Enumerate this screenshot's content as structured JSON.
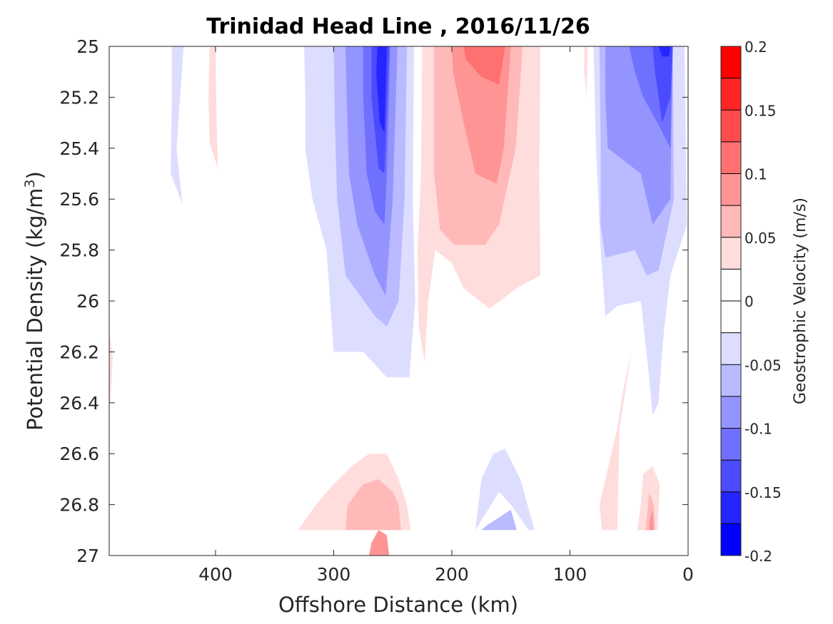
{
  "chart_data": {
    "type": "contour",
    "title": "Trinidad Head Line , 2016/11/26",
    "xlabel": "Offshore Distance (km)",
    "ylabel_prefix": "Potential Density (kg/m",
    "ylabel_superscript": "3",
    "ylabel_suffix": ")",
    "colorbar_label": "Geostrophic Velocity (m/s)",
    "x_axis_reversed": true,
    "y_axis_reversed": true,
    "xlim": [
      490,
      0
    ],
    "ylim": [
      25,
      27
    ],
    "xticks": [
      400,
      300,
      200,
      100,
      0
    ],
    "xtick_labels": [
      "400",
      "300",
      "200",
      "100",
      "0"
    ],
    "yticks": [
      25,
      25.2,
      25.4,
      25.6,
      25.8,
      26,
      26.2,
      26.4,
      26.6,
      26.8,
      27
    ],
    "ytick_labels": [
      "25",
      "25.2",
      "25.4",
      "25.6",
      "25.8",
      "26",
      "26.2",
      "26.4",
      "26.6",
      "26.8",
      "27"
    ],
    "colorbar": {
      "range": [
        -0.2,
        0.2
      ],
      "tick_values": [
        0.2,
        0.15,
        0.1,
        0.05,
        0,
        -0.05,
        -0.1,
        -0.15,
        -0.2
      ],
      "tick_labels": [
        "0.2",
        "0.15",
        "0.1",
        "0.05",
        "0",
        "-0.05",
        "-0.1",
        "-0.15",
        "-0.2"
      ],
      "bands_top_to_bottom": [
        "#ff0000",
        "#ff2525",
        "#ff4b4b",
        "#ff7070",
        "#ff9494",
        "#ffb9b9",
        "#ffdddd",
        "#ffffff",
        "#ffffff",
        "#dddeff",
        "#b9baff",
        "#9494ff",
        "#7070ff",
        "#4b4bff",
        "#2525ff",
        "#0000ff"
      ]
    },
    "contour_regions": [
      {
        "level": -0.025,
        "color": "#dddeff",
        "points": [
          [
            437,
            25.0
          ],
          [
            427,
            25.0
          ],
          [
            433,
            25.4
          ],
          [
            428,
            25.62
          ],
          [
            438,
            25.5
          ],
          [
            437,
            25.2
          ]
        ]
      },
      {
        "level": 0.025,
        "color": "#ffdddd",
        "points": [
          [
            405,
            25.0
          ],
          [
            400,
            25.0
          ],
          [
            399,
            25.3
          ],
          [
            398,
            25.48
          ],
          [
            405,
            25.38
          ],
          [
            406,
            25.2
          ]
        ]
      },
      {
        "level": 0.025,
        "color": "#ffdddd",
        "points": [
          [
            490,
            26.12
          ],
          [
            487,
            26.22
          ],
          [
            489,
            26.4
          ],
          [
            490,
            26.4
          ]
        ]
      },
      {
        "level": 0.025,
        "color": "#ffdddd",
        "points": [
          [
            88,
            25.0
          ],
          [
            85,
            25.0
          ],
          [
            86,
            25.2
          ],
          [
            88,
            25.1
          ]
        ]
      },
      {
        "level": -0.025,
        "color": "#dddeff",
        "points": [
          [
            325,
            25.0
          ],
          [
            232,
            25.0
          ],
          [
            233,
            25.6
          ],
          [
            231,
            26.0
          ],
          [
            236,
            26.3
          ],
          [
            255,
            26.3
          ],
          [
            275,
            26.2
          ],
          [
            300,
            26.2
          ],
          [
            303,
            26.0
          ],
          [
            306,
            25.8
          ],
          [
            318,
            25.6
          ],
          [
            324,
            25.4
          ],
          [
            324,
            25.2
          ]
        ]
      },
      {
        "level": -0.05,
        "color": "#b9baff",
        "points": [
          [
            300,
            25.0
          ],
          [
            238,
            25.0
          ],
          [
            240,
            25.6
          ],
          [
            245,
            26.0
          ],
          [
            255,
            26.1
          ],
          [
            265,
            26.06
          ],
          [
            290,
            25.9
          ],
          [
            297,
            25.6
          ],
          [
            299,
            25.3
          ]
        ]
      },
      {
        "level": -0.075,
        "color": "#9494ff",
        "points": [
          [
            290,
            25.0
          ],
          [
            246,
            25.0
          ],
          [
            250,
            25.6
          ],
          [
            256,
            25.98
          ],
          [
            265,
            25.9
          ],
          [
            280,
            25.7
          ],
          [
            287,
            25.5
          ],
          [
            289,
            25.2
          ]
        ]
      },
      {
        "level": -0.1,
        "color": "#7070ff",
        "points": [
          [
            275,
            25.0
          ],
          [
            252,
            25.0
          ],
          [
            255,
            25.5
          ],
          [
            257,
            25.7
          ],
          [
            265,
            25.65
          ],
          [
            272,
            25.5
          ],
          [
            275,
            25.2
          ]
        ]
      },
      {
        "level": -0.125,
        "color": "#4b4bff",
        "points": [
          [
            268,
            25.0
          ],
          [
            253,
            25.0
          ],
          [
            257,
            25.5
          ],
          [
            262,
            25.48
          ],
          [
            268,
            25.2
          ]
        ]
      },
      {
        "level": -0.15,
        "color": "#2525ff",
        "points": [
          [
            263,
            25.0
          ],
          [
            255,
            25.0
          ],
          [
            257,
            25.34
          ],
          [
            261,
            25.3
          ],
          [
            264,
            25.1
          ]
        ]
      },
      {
        "level": 0.025,
        "color": "#ffdddd",
        "points": [
          [
            225,
            25.0
          ],
          [
            125,
            25.0
          ],
          [
            126,
            25.5
          ],
          [
            125,
            25.9
          ],
          [
            145,
            25.95
          ],
          [
            168,
            26.03
          ],
          [
            190,
            25.95
          ],
          [
            200,
            25.85
          ],
          [
            214,
            25.8
          ],
          [
            220,
            26.0
          ],
          [
            223,
            26.24
          ],
          [
            228,
            26.1
          ],
          [
            229,
            25.8
          ],
          [
            226,
            25.5
          ]
        ]
      },
      {
        "level": 0.05,
        "color": "#ffb9b9",
        "points": [
          [
            215,
            25.0
          ],
          [
            140,
            25.0
          ],
          [
            146,
            25.4
          ],
          [
            160,
            25.7
          ],
          [
            172,
            25.78
          ],
          [
            198,
            25.78
          ],
          [
            210,
            25.72
          ],
          [
            215,
            25.5
          ]
        ]
      },
      {
        "level": 0.075,
        "color": "#ff9494",
        "points": [
          [
            200,
            25.0
          ],
          [
            150,
            25.0
          ],
          [
            156,
            25.4
          ],
          [
            162,
            25.54
          ],
          [
            180,
            25.5
          ],
          [
            190,
            25.3
          ],
          [
            199,
            25.1
          ]
        ]
      },
      {
        "level": 0.1,
        "color": "#ff7070",
        "points": [
          [
            190,
            25.0
          ],
          [
            155,
            25.0
          ],
          [
            160,
            25.15
          ],
          [
            175,
            25.12
          ],
          [
            188,
            25.05
          ]
        ]
      },
      {
        "level": -0.025,
        "color": "#dddeff",
        "points": [
          [
            80,
            25.0
          ],
          [
            3,
            25.0
          ],
          [
            1,
            25.7
          ],
          [
            15,
            25.9
          ],
          [
            20,
            26.1
          ],
          [
            22,
            26.2
          ],
          [
            25,
            26.4
          ],
          [
            30,
            26.45
          ],
          [
            33,
            26.3
          ],
          [
            40,
            26.0
          ],
          [
            60,
            26.02
          ],
          [
            70,
            26.06
          ],
          [
            74,
            25.8
          ],
          [
            78,
            25.4
          ]
        ]
      },
      {
        "level": -0.05,
        "color": "#b9baff",
        "points": [
          [
            75,
            25.0
          ],
          [
            13,
            25.0
          ],
          [
            12,
            25.6
          ],
          [
            25,
            25.88
          ],
          [
            35,
            25.9
          ],
          [
            45,
            25.8
          ],
          [
            70,
            25.83
          ],
          [
            74,
            25.7
          ],
          [
            74,
            25.4
          ]
        ]
      },
      {
        "level": -0.075,
        "color": "#9494ff",
        "points": [
          [
            70,
            25.0
          ],
          [
            13,
            25.0
          ],
          [
            15,
            25.6
          ],
          [
            30,
            25.7
          ],
          [
            40,
            25.5
          ],
          [
            68,
            25.4
          ],
          [
            70,
            25.2
          ]
        ]
      },
      {
        "level": -0.1,
        "color": "#7070ff",
        "points": [
          [
            50,
            25.0
          ],
          [
            13,
            25.0
          ],
          [
            15,
            25.4
          ],
          [
            26,
            25.3
          ],
          [
            38,
            25.2
          ],
          [
            45,
            25.1
          ]
        ]
      },
      {
        "level": -0.125,
        "color": "#4b4bff",
        "points": [
          [
            30,
            25.0
          ],
          [
            13,
            25.0
          ],
          [
            15,
            25.2
          ],
          [
            22,
            25.3
          ],
          [
            28,
            25.1
          ]
        ]
      },
      {
        "level": -0.15,
        "color": "#2525ff",
        "points": [
          [
            25,
            25.0
          ],
          [
            15,
            25.0
          ],
          [
            16,
            25.04
          ],
          [
            22,
            25.04
          ]
        ]
      },
      {
        "level": 0.025,
        "color": "#ffdddd",
        "points": [
          [
            73,
            26.9
          ],
          [
            60,
            26.9
          ],
          [
            58,
            26.5
          ],
          [
            48,
            26.2
          ],
          [
            55,
            26.35
          ],
          [
            60,
            26.5
          ],
          [
            75,
            26.8
          ]
        ]
      },
      {
        "level": 0.025,
        "color": "#ffdddd",
        "points": [
          [
            333,
            26.9
          ],
          [
            245,
            26.9
          ],
          [
            235,
            26.9
          ],
          [
            238,
            26.8
          ],
          [
            245,
            26.7
          ],
          [
            255,
            26.6
          ],
          [
            270,
            26.6
          ],
          [
            285,
            26.65
          ],
          [
            300,
            26.72
          ],
          [
            315,
            26.8
          ],
          [
            330,
            26.9
          ]
        ]
      },
      {
        "level": 0.05,
        "color": "#ffb9b9",
        "points": [
          [
            290,
            26.9
          ],
          [
            243,
            26.9
          ],
          [
            245,
            26.8
          ],
          [
            250,
            26.75
          ],
          [
            262,
            26.7
          ],
          [
            275,
            26.72
          ],
          [
            288,
            26.8
          ]
        ]
      },
      {
        "level": 0.075,
        "color": "#ff9494",
        "points": [
          [
            270,
            27.0
          ],
          [
            253,
            27.0
          ],
          [
            255,
            26.92
          ],
          [
            262,
            26.9
          ],
          [
            268,
            26.95
          ]
        ]
      },
      {
        "level": -0.025,
        "color": "#dddeff",
        "points": [
          [
            212,
            27.0
          ],
          [
            210,
            26.92
          ],
          [
            212,
            27.0
          ]
        ]
      },
      {
        "level": -0.025,
        "color": "#dddeff",
        "points": [
          [
            190,
            27.0
          ],
          [
            180,
            26.9
          ],
          [
            175,
            26.7
          ],
          [
            165,
            26.6
          ],
          [
            155,
            26.58
          ],
          [
            142,
            26.7
          ],
          [
            130,
            26.9
          ],
          [
            135,
            26.9
          ],
          [
            150,
            26.8
          ],
          [
            160,
            26.75
          ],
          [
            180,
            26.9
          ]
        ]
      },
      {
        "level": -0.05,
        "color": "#b9baff",
        "points": [
          [
            175,
            26.9
          ],
          [
            145,
            26.9
          ],
          [
            150,
            26.82
          ],
          [
            160,
            26.85
          ],
          [
            170,
            26.88
          ]
        ]
      },
      {
        "level": 0.025,
        "color": "#ffdddd",
        "points": [
          [
            43,
            26.9
          ],
          [
            26,
            26.9
          ],
          [
            24,
            26.72
          ],
          [
            30,
            26.65
          ],
          [
            38,
            26.68
          ],
          [
            40,
            26.8
          ]
        ]
      },
      {
        "level": 0.05,
        "color": "#ffb9b9",
        "points": [
          [
            36,
            26.9
          ],
          [
            28,
            26.9
          ],
          [
            29,
            26.8
          ],
          [
            33,
            26.75
          ]
        ]
      },
      {
        "level": 0.075,
        "color": "#ff9494",
        "points": [
          [
            33,
            26.9
          ],
          [
            29,
            26.9
          ],
          [
            30,
            26.82
          ],
          [
            32,
            26.85
          ]
        ]
      }
    ]
  }
}
